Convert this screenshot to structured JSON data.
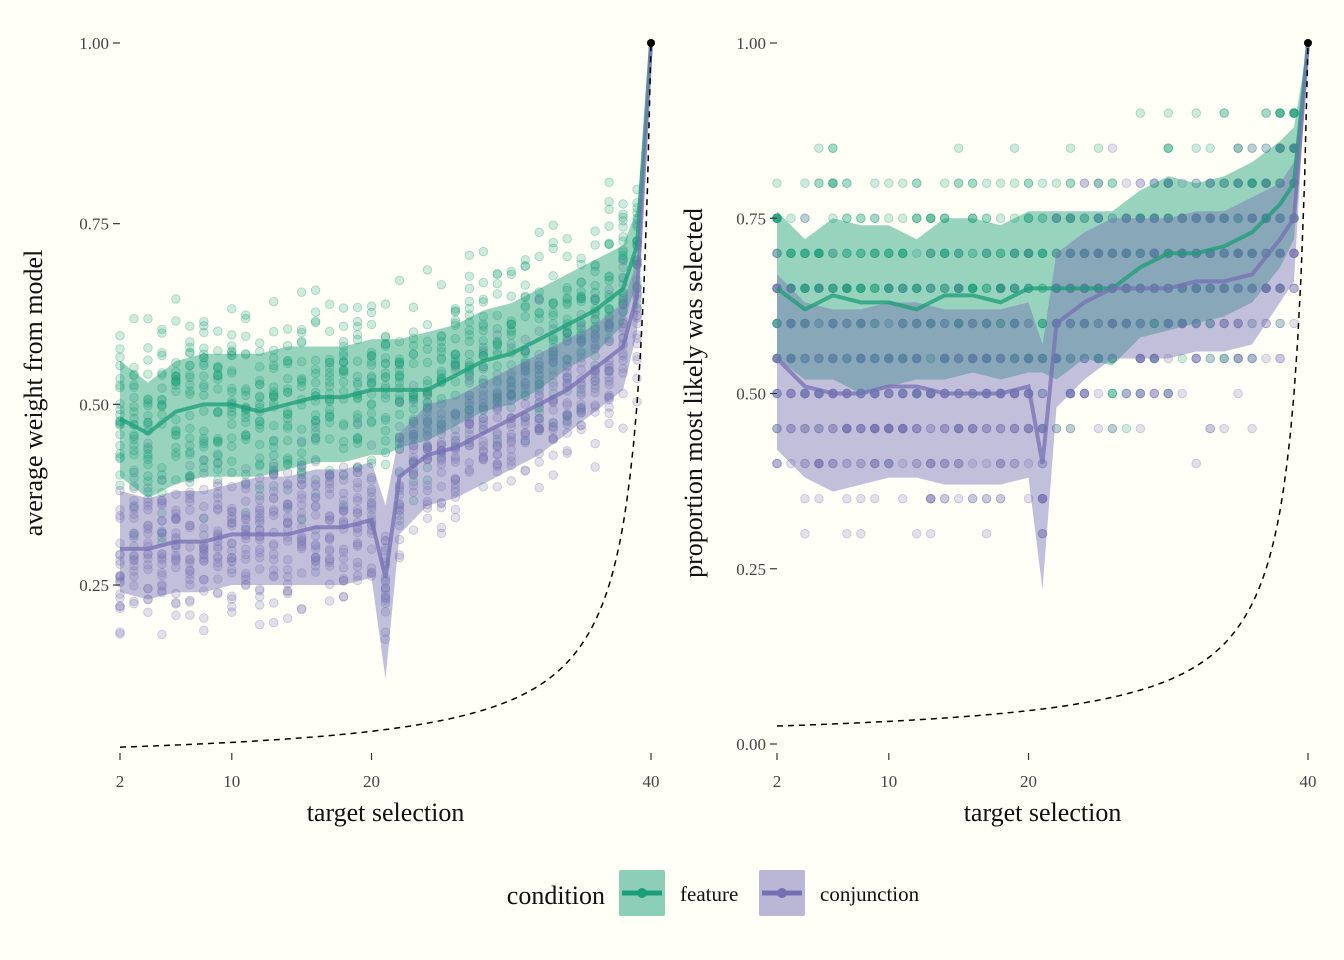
{
  "colors": {
    "feature": "#1b9e77",
    "conjunction": "#7570b3",
    "background": "#fffff8",
    "reference": "#000000"
  },
  "legend": {
    "title": "condition",
    "placement": "bottom",
    "items": [
      {
        "key": "feature",
        "label": "feature"
      },
      {
        "key": "conjunction",
        "label": "conjunction"
      }
    ]
  },
  "chart_data": [
    {
      "type": "scatter",
      "panel": "left",
      "xlabel": "target selection",
      "ylabel": "average weight from model",
      "xlim": [
        2,
        40
      ],
      "ylim": [
        0.03,
        1.0
      ],
      "xticks": [
        2,
        10,
        20,
        40
      ],
      "yticks": [
        0.25,
        0.5,
        0.75,
        1.0
      ],
      "ytick_labels": [
        "0.25",
        "0.50",
        "0.75",
        "1.00"
      ],
      "grid": false,
      "reference_line": {
        "style": "dashed",
        "formula": "1/(41-x)",
        "endpoint": [
          40,
          1.0
        ]
      },
      "series": [
        {
          "key": "feature",
          "x": [
            2,
            4,
            6,
            8,
            10,
            12,
            14,
            16,
            18,
            20,
            21,
            22,
            24,
            26,
            28,
            30,
            32,
            34,
            36,
            38,
            39,
            40
          ],
          "mean": [
            0.48,
            0.46,
            0.49,
            0.5,
            0.5,
            0.49,
            0.5,
            0.51,
            0.51,
            0.52,
            0.52,
            0.52,
            0.52,
            0.54,
            0.56,
            0.57,
            0.59,
            0.61,
            0.63,
            0.66,
            0.72,
            1.0
          ],
          "lower": [
            0.4,
            0.37,
            0.39,
            0.4,
            0.4,
            0.4,
            0.41,
            0.42,
            0.42,
            0.43,
            0.43,
            0.44,
            0.45,
            0.47,
            0.49,
            0.5,
            0.52,
            0.55,
            0.57,
            0.61,
            0.67,
            1.0
          ],
          "upper": [
            0.56,
            0.53,
            0.56,
            0.57,
            0.57,
            0.57,
            0.58,
            0.58,
            0.58,
            0.59,
            0.59,
            0.59,
            0.6,
            0.61,
            0.63,
            0.64,
            0.66,
            0.68,
            0.7,
            0.72,
            0.77,
            1.0
          ],
          "scatter_spread": 0.12
        },
        {
          "key": "conjunction",
          "x": [
            2,
            4,
            6,
            8,
            10,
            12,
            14,
            16,
            18,
            20,
            21,
            22,
            24,
            26,
            28,
            30,
            32,
            34,
            36,
            38,
            39,
            40
          ],
          "mean": [
            0.3,
            0.3,
            0.31,
            0.31,
            0.32,
            0.32,
            0.32,
            0.33,
            0.33,
            0.34,
            0.26,
            0.4,
            0.43,
            0.44,
            0.46,
            0.48,
            0.5,
            0.52,
            0.55,
            0.58,
            0.65,
            1.0
          ],
          "lower": [
            0.24,
            0.23,
            0.24,
            0.24,
            0.25,
            0.25,
            0.25,
            0.25,
            0.25,
            0.26,
            0.12,
            0.32,
            0.36,
            0.37,
            0.39,
            0.41,
            0.43,
            0.46,
            0.49,
            0.52,
            0.6,
            1.0
          ],
          "upper": [
            0.38,
            0.37,
            0.38,
            0.38,
            0.39,
            0.4,
            0.4,
            0.41,
            0.41,
            0.42,
            0.36,
            0.46,
            0.5,
            0.51,
            0.53,
            0.55,
            0.57,
            0.59,
            0.61,
            0.64,
            0.7,
            1.0
          ],
          "scatter_spread": 0.1
        }
      ]
    },
    {
      "type": "scatter",
      "panel": "right",
      "xlabel": "target selection",
      "ylabel": "proportion most likely was selected",
      "xlim": [
        2,
        40
      ],
      "ylim": [
        0.0,
        1.0
      ],
      "xticks": [
        2,
        10,
        20,
        40
      ],
      "yticks": [
        0.0,
        0.25,
        0.5,
        0.75,
        1.0
      ],
      "ytick_labels": [
        "0.00",
        "0.25",
        "0.50",
        "0.75",
        "1.00"
      ],
      "grid": false,
      "reference_line": {
        "style": "dashed",
        "formula": "1/(41-x)",
        "endpoint": [
          40,
          1.0
        ]
      },
      "series": [
        {
          "key": "feature",
          "x": [
            2,
            4,
            6,
            8,
            10,
            12,
            14,
            16,
            18,
            20,
            21,
            22,
            24,
            26,
            28,
            30,
            32,
            34,
            36,
            38,
            39,
            40
          ],
          "mean": [
            0.65,
            0.62,
            0.64,
            0.63,
            0.63,
            0.62,
            0.64,
            0.64,
            0.63,
            0.65,
            0.65,
            0.65,
            0.65,
            0.65,
            0.68,
            0.7,
            0.7,
            0.71,
            0.73,
            0.77,
            0.8,
            1.0
          ],
          "lower": [
            0.55,
            0.52,
            0.52,
            0.5,
            0.51,
            0.52,
            0.52,
            0.53,
            0.52,
            0.53,
            0.53,
            0.52,
            0.55,
            0.54,
            0.58,
            0.59,
            0.6,
            0.61,
            0.63,
            0.68,
            0.72,
            1.0
          ],
          "upper": [
            0.76,
            0.72,
            0.75,
            0.74,
            0.74,
            0.72,
            0.75,
            0.75,
            0.74,
            0.76,
            0.76,
            0.76,
            0.76,
            0.76,
            0.79,
            0.81,
            0.8,
            0.81,
            0.83,
            0.86,
            0.88,
            1.0
          ],
          "scatter_spread": 0.16
        },
        {
          "key": "conjunction",
          "x": [
            2,
            4,
            6,
            8,
            10,
            12,
            14,
            16,
            18,
            20,
            21,
            22,
            24,
            26,
            28,
            30,
            32,
            34,
            36,
            38,
            39,
            40
          ],
          "mean": [
            0.55,
            0.51,
            0.5,
            0.5,
            0.51,
            0.51,
            0.5,
            0.5,
            0.5,
            0.51,
            0.4,
            0.6,
            0.63,
            0.65,
            0.65,
            0.65,
            0.66,
            0.66,
            0.67,
            0.72,
            0.75,
            1.0
          ],
          "lower": [
            0.42,
            0.38,
            0.36,
            0.37,
            0.38,
            0.38,
            0.37,
            0.37,
            0.37,
            0.38,
            0.22,
            0.48,
            0.52,
            0.55,
            0.55,
            0.55,
            0.56,
            0.56,
            0.57,
            0.63,
            0.66,
            1.0
          ],
          "upper": [
            0.67,
            0.63,
            0.62,
            0.62,
            0.63,
            0.63,
            0.62,
            0.62,
            0.62,
            0.63,
            0.57,
            0.7,
            0.73,
            0.75,
            0.75,
            0.75,
            0.76,
            0.76,
            0.78,
            0.8,
            0.83,
            1.0
          ],
          "scatter_spread": 0.16
        }
      ]
    }
  ]
}
